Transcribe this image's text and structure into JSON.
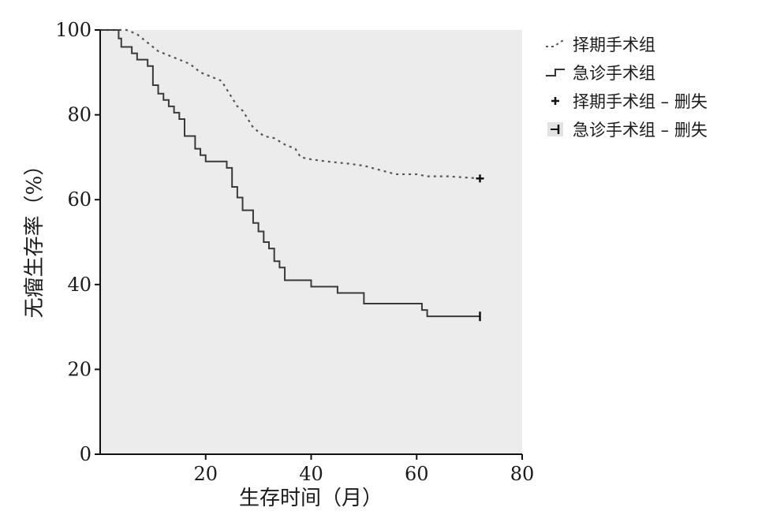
{
  "chart_data": {
    "type": "line",
    "xlabel": "生存时间（月）",
    "ylabel": "无瘤生存率（%）",
    "xlim": [
      0,
      80
    ],
    "ylim": [
      0,
      100
    ],
    "x_ticks": [
      "20",
      "40",
      "60",
      "80"
    ],
    "y_ticks": [
      "0",
      "20",
      "40",
      "60",
      "80",
      "100"
    ],
    "grid": false,
    "background": "#ececec",
    "legend_position": "top-right",
    "legend": [
      {
        "label": "择期手术组",
        "marker": "dotted-line"
      },
      {
        "label": "急诊手术组",
        "marker": "solid-step"
      },
      {
        "label": "择期手术组 – 删失",
        "marker": "plus"
      },
      {
        "label": "急诊手术组 – 删失",
        "marker": "vertical-tick"
      }
    ],
    "series": [
      {
        "name": "择期手术组",
        "style": "dotted",
        "color": "#555555",
        "points": [
          [
            0,
            100
          ],
          [
            5,
            100
          ],
          [
            7,
            99
          ],
          [
            9,
            97
          ],
          [
            11,
            95
          ],
          [
            13,
            94
          ],
          [
            15,
            93
          ],
          [
            17,
            92
          ],
          [
            19,
            90
          ],
          [
            21,
            89
          ],
          [
            23,
            88
          ],
          [
            24,
            86
          ],
          [
            25,
            84
          ],
          [
            26,
            82
          ],
          [
            27,
            81
          ],
          [
            28,
            79
          ],
          [
            29,
            77
          ],
          [
            30,
            76
          ],
          [
            31,
            75
          ],
          [
            33,
            74.5
          ],
          [
            35,
            73
          ],
          [
            37,
            72
          ],
          [
            38,
            70
          ],
          [
            40,
            69.5
          ],
          [
            43,
            69
          ],
          [
            47,
            68.5
          ],
          [
            50,
            68
          ],
          [
            53,
            67
          ],
          [
            56,
            66
          ],
          [
            60,
            66
          ],
          [
            62,
            65.5
          ],
          [
            66,
            65.5
          ],
          [
            72,
            65
          ]
        ],
        "censor": [
          [
            72,
            65
          ]
        ]
      },
      {
        "name": "急诊手术组",
        "style": "solid-step",
        "color": "#3a3a3a",
        "points": [
          [
            0,
            100
          ],
          [
            3,
            100
          ],
          [
            3.5,
            98
          ],
          [
            4,
            96
          ],
          [
            6,
            94.5
          ],
          [
            7,
            93
          ],
          [
            9,
            91.5
          ],
          [
            10,
            87
          ],
          [
            11,
            85
          ],
          [
            12,
            83.5
          ],
          [
            13,
            82
          ],
          [
            14,
            80.5
          ],
          [
            15,
            79
          ],
          [
            16,
            75
          ],
          [
            18,
            72
          ],
          [
            19,
            70.5
          ],
          [
            20,
            69
          ],
          [
            24,
            67.5
          ],
          [
            25,
            63
          ],
          [
            26,
            60.5
          ],
          [
            27,
            57.5
          ],
          [
            29,
            54.5
          ],
          [
            30,
            52.5
          ],
          [
            31,
            50
          ],
          [
            32,
            48.5
          ],
          [
            33,
            45.5
          ],
          [
            34,
            44
          ],
          [
            35,
            41
          ],
          [
            40,
            39.5
          ],
          [
            45,
            38
          ],
          [
            50,
            35.5
          ],
          [
            61,
            34
          ],
          [
            62,
            32.5
          ],
          [
            72,
            32.5
          ]
        ],
        "censor": [
          [
            72,
            32.5
          ]
        ]
      }
    ]
  }
}
